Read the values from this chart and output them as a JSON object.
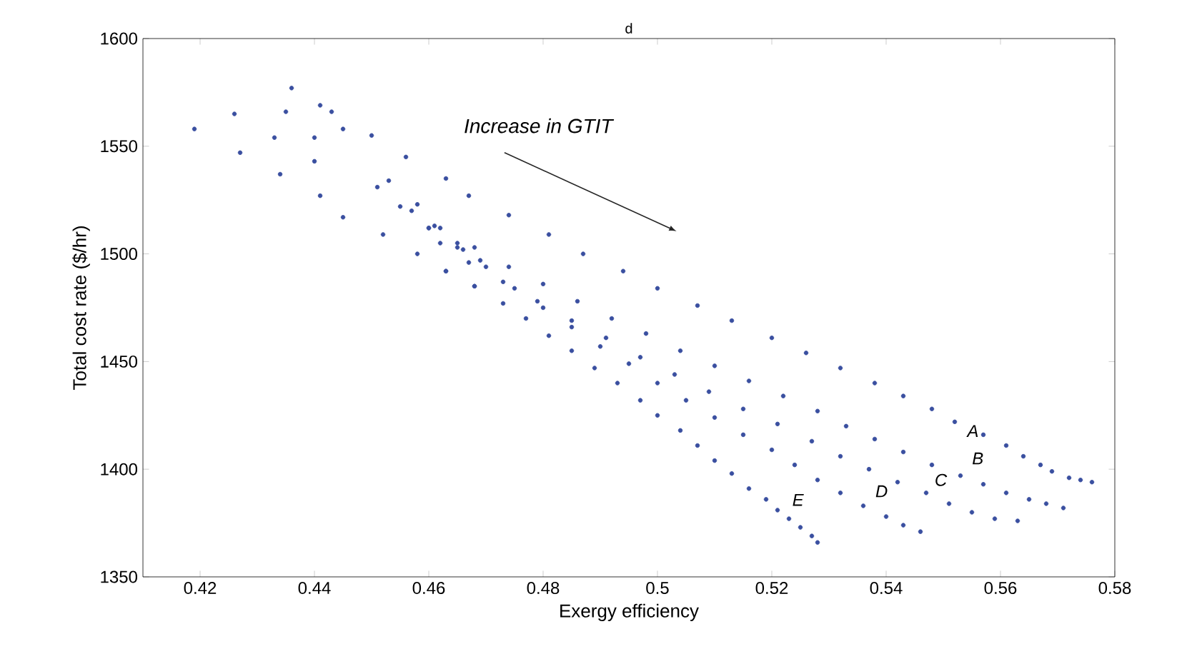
{
  "chart_data": {
    "type": "scatter",
    "title": "d",
    "xlabel": "Exergy efficiency",
    "ylabel": "Total cost rate ($/hr)",
    "xlim": [
      0.41,
      0.58
    ],
    "xticks": [
      0.42,
      0.44,
      0.46,
      0.48,
      0.5,
      0.52,
      0.54,
      0.56,
      0.58
    ],
    "ylim": [
      1350,
      1600
    ],
    "yticks": [
      1350,
      1400,
      1450,
      1500,
      1550,
      1600
    ],
    "grid": false,
    "annotations": [
      "Increase in GTIT",
      "A",
      "B",
      "C",
      "D",
      "E"
    ],
    "series": [
      {
        "color": "#3a4fa0",
        "x": [
          0.419,
          0.426,
          0.427,
          0.433,
          0.434,
          0.436,
          0.435,
          0.441,
          0.443,
          0.44,
          0.44,
          0.441,
          0.445,
          0.445,
          0.45,
          0.451,
          0.452,
          0.453,
          0.456,
          0.455,
          0.458,
          0.458,
          0.46,
          0.461,
          0.463,
          0.463,
          0.465,
          0.466,
          0.468,
          0.469,
          0.467,
          0.474,
          0.481,
          0.487,
          0.494,
          0.5,
          0.507,
          0.513,
          0.52,
          0.526,
          0.532,
          0.538,
          0.543,
          0.548,
          0.552,
          0.557,
          0.561,
          0.564,
          0.567,
          0.569,
          0.572,
          0.574,
          0.576,
          0.457,
          0.462,
          0.468,
          0.474,
          0.48,
          0.486,
          0.492,
          0.498,
          0.504,
          0.51,
          0.516,
          0.522,
          0.528,
          0.533,
          0.538,
          0.543,
          0.548,
          0.553,
          0.557,
          0.561,
          0.565,
          0.568,
          0.571,
          0.462,
          0.467,
          0.473,
          0.479,
          0.485,
          0.491,
          0.497,
          0.503,
          0.509,
          0.515,
          0.521,
          0.527,
          0.532,
          0.537,
          0.542,
          0.547,
          0.551,
          0.555,
          0.559,
          0.563,
          0.46,
          0.465,
          0.47,
          0.475,
          0.48,
          0.485,
          0.49,
          0.495,
          0.5,
          0.505,
          0.51,
          0.515,
          0.52,
          0.524,
          0.528,
          0.532,
          0.536,
          0.54,
          0.543,
          0.546,
          0.463,
          0.468,
          0.473,
          0.477,
          0.481,
          0.485,
          0.489,
          0.493,
          0.497,
          0.5,
          0.504,
          0.507,
          0.51,
          0.513,
          0.516,
          0.519,
          0.521,
          0.523,
          0.525,
          0.527,
          0.528
        ],
        "values": [
          1558,
          1565,
          1547,
          1554,
          1537,
          1577,
          1566,
          1569,
          1566,
          1554,
          1543,
          1527,
          1558,
          1517,
          1555,
          1531,
          1509,
          1534,
          1545,
          1522,
          1523,
          1500,
          1512,
          1513,
          1535,
          1492,
          1505,
          1502,
          1485,
          1497,
          1527,
          1518,
          1509,
          1500,
          1492,
          1484,
          1476,
          1469,
          1461,
          1454,
          1447,
          1440,
          1434,
          1428,
          1422,
          1416,
          1411,
          1406,
          1402,
          1399,
          1396,
          1395,
          1394,
          1520,
          1512,
          1503,
          1494,
          1486,
          1478,
          1470,
          1463,
          1455,
          1448,
          1441,
          1434,
          1427,
          1420,
          1414,
          1408,
          1402,
          1397,
          1393,
          1389,
          1386,
          1384,
          1382,
          1505,
          1496,
          1487,
          1478,
          1469,
          1461,
          1452,
          1444,
          1436,
          1428,
          1421,
          1413,
          1406,
          1400,
          1394,
          1389,
          1384,
          1380,
          1377,
          1376,
          1512,
          1503,
          1494,
          1484,
          1475,
          1466,
          1457,
          1449,
          1440,
          1432,
          1424,
          1416,
          1409,
          1402,
          1395,
          1389,
          1383,
          1378,
          1374,
          1371,
          1492,
          1485,
          1477,
          1470,
          1462,
          1455,
          1447,
          1440,
          1432,
          1425,
          1418,
          1411,
          1404,
          1398,
          1391,
          1386,
          1381,
          1377,
          1373,
          1369,
          1366
        ]
      }
    ]
  }
}
